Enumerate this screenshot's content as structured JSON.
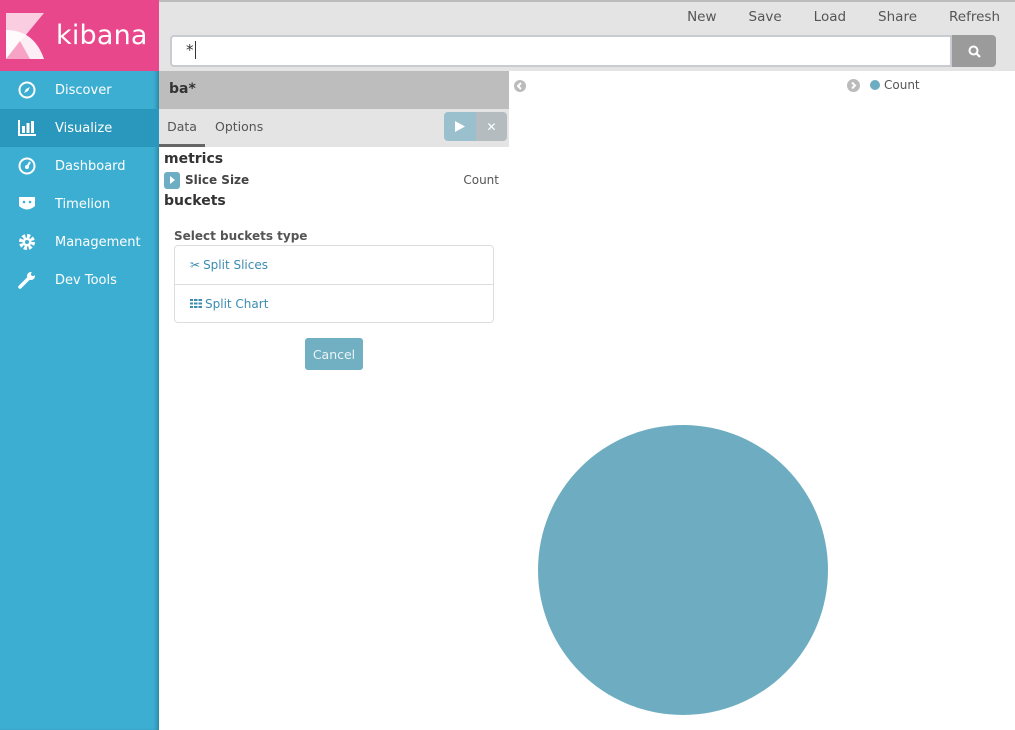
{
  "app": {
    "logo_text": "kibana"
  },
  "sidebar": {
    "items": [
      {
        "label": "Discover",
        "icon": "compass-icon"
      },
      {
        "label": "Visualize",
        "icon": "bar-chart-icon",
        "active": true
      },
      {
        "label": "Dashboard",
        "icon": "dashboard-icon"
      },
      {
        "label": "Timelion",
        "icon": "timelion-icon"
      },
      {
        "label": "Management",
        "icon": "gear-icon"
      },
      {
        "label": "Dev Tools",
        "icon": "wrench-icon"
      }
    ]
  },
  "toolbar": {
    "new": "New",
    "save": "Save",
    "load": "Load",
    "share": "Share",
    "refresh": "Refresh"
  },
  "search": {
    "value": "*",
    "icon": "search-icon"
  },
  "editor": {
    "index_pattern": "ba*",
    "tabs": [
      "Data",
      "Options"
    ],
    "metrics_heading": "metrics",
    "metric": {
      "label": "Slice Size",
      "value": "Count"
    },
    "buckets_heading": "buckets",
    "select_label": "Select buckets type",
    "bucket_types": [
      "Split Slices",
      "Split Chart"
    ],
    "cancel": "Cancel"
  },
  "chart_data": {
    "type": "pie",
    "legend_position": "top-right",
    "series": [
      {
        "name": "Count",
        "values": [
          1
        ]
      }
    ],
    "labels": [
      "Count"
    ],
    "colors": [
      "#6eadc1"
    ]
  }
}
